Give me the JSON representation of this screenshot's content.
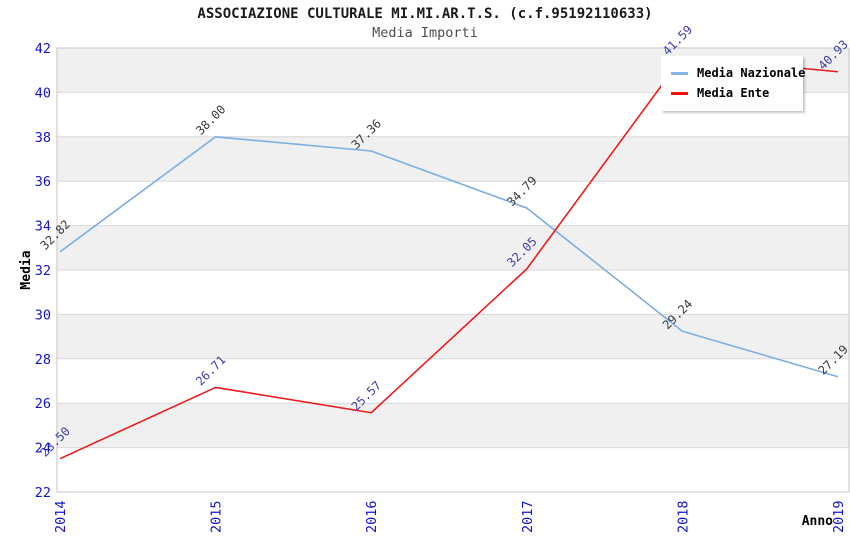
{
  "header": {
    "title": "ASSOCIAZIONE CULTURALE MI.MI.AR.T.S. (c.f.95192110633)",
    "subtitle": "Media Importi"
  },
  "legend": {
    "position": "top-right",
    "items": [
      {
        "label": "Media Nazionale",
        "color": "#85b6e6"
      },
      {
        "label": "Media Ente",
        "color": "#ee1111"
      }
    ]
  },
  "colors": {
    "axis_tick_text": "#1414cc",
    "axis_title_text": "#000000",
    "band_gray": "#f0f0f0",
    "gridline": "#d9d9d9",
    "plot_border": "#c6c6c6",
    "series_nazionale": "#7dafe0",
    "series_ente": "#ee1c1c",
    "label_nazionale": "#3c3c3c",
    "label_ente": "#3d3da8"
  },
  "chart_data": {
    "type": "line",
    "title": "ASSOCIAZIONE CULTURALE MI.MI.AR.T.S. (c.f.95192110633)",
    "subtitle": "Media Importi",
    "x": [
      2014,
      2015,
      2016,
      2017,
      2018,
      2019
    ],
    "series": [
      {
        "name": "Media Nazionale",
        "color": "#7dafe0",
        "label_color": "#3c3c3c",
        "values": [
          32.82,
          38.0,
          37.36,
          34.79,
          29.24,
          27.19
        ]
      },
      {
        "name": "Media Ente",
        "color": "#ee1c1c",
        "label_color": "#3d3da8",
        "values": [
          23.5,
          26.71,
          25.57,
          32.05,
          41.59,
          40.93
        ]
      }
    ],
    "xlabel": "Anno",
    "ylabel": "Media",
    "ylim": [
      22,
      42
    ],
    "ytick_step": 2,
    "yticks": [
      22,
      24,
      26,
      28,
      30,
      32,
      34,
      36,
      38,
      40,
      42
    ],
    "grid": "horizontal-alternating-bands",
    "legend_position": "top-right",
    "point_label_decimals": 2
  }
}
